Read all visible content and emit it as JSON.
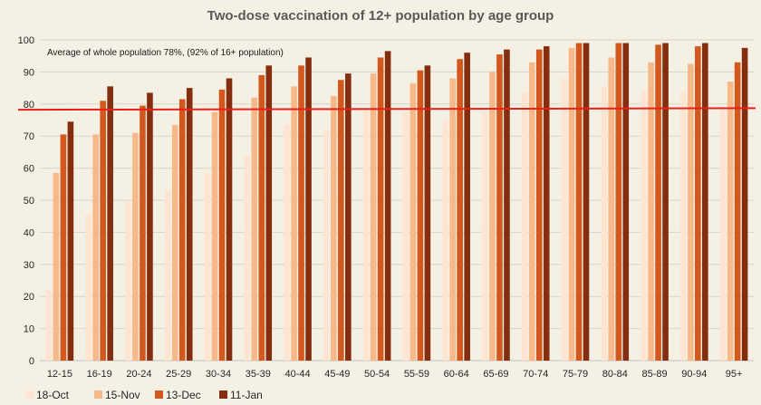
{
  "chart_data": {
    "type": "bar",
    "title": "Two-dose vaccination of 12+ population by age group",
    "xlabel": "",
    "ylabel": "",
    "ylim": [
      0,
      100
    ],
    "yticks": [
      0,
      10,
      20,
      30,
      40,
      50,
      60,
      70,
      80,
      90,
      100
    ],
    "grid": true,
    "legend_position": "bottom-left",
    "categories": [
      "12-15",
      "16-19",
      "20-24",
      "25-29",
      "30-34",
      "35-39",
      "40-44",
      "45-49",
      "50-54",
      "55-59",
      "60-64",
      "65-69",
      "70-74",
      "75-79",
      "80-84",
      "85-89",
      "90-94",
      "95+"
    ],
    "series": [
      {
        "name": "18-Oct",
        "color": "#fde5d2",
        "values": [
          22,
          45.5,
          49.5,
          53,
          58.5,
          64,
          73.5,
          72,
          78,
          77.5,
          75,
          77.5,
          83.5,
          88,
          85.5,
          84,
          84,
          79
        ]
      },
      {
        "name": "15-Nov",
        "color": "#f7b98a",
        "values": [
          58.5,
          70.5,
          71,
          73.5,
          77.5,
          82,
          85.5,
          82.5,
          89.5,
          86.5,
          88,
          90,
          93,
          97.5,
          94.5,
          93,
          92.5,
          87
        ]
      },
      {
        "name": "13-Dec",
        "color": "#d3581d",
        "values": [
          70.5,
          81,
          79.5,
          81.5,
          84.5,
          89,
          92,
          87.5,
          94.5,
          90.5,
          94,
          95.5,
          97,
          99,
          99,
          98.5,
          98,
          93
        ]
      },
      {
        "name": "11-Jan",
        "color": "#842d0f",
        "values": [
          74.5,
          85.5,
          83.5,
          85,
          88,
          92,
          94.5,
          89.5,
          96.5,
          92,
          96,
          97,
          98,
          99,
          99,
          99,
          99,
          97.5
        ]
      }
    ],
    "reference_line": {
      "value": 78.5,
      "color": "#e8201a"
    },
    "annotation": "Average of whole population 78%, (92% of 16+ population)"
  }
}
